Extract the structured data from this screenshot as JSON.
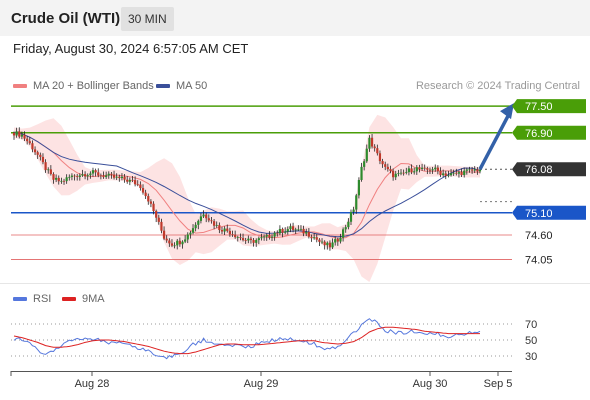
{
  "header": {
    "title": "Crude Oil (WTI)",
    "timeframe": "30 MIN"
  },
  "datetime": "Friday, August 30, 2024 6:57:05 AM CET",
  "copyright": "Research © 2024 Trading Central",
  "colors": {
    "resistance": "#4a9e08",
    "support": "#1a56c8",
    "target_minor": "#e06060",
    "bollinger_fill": "#fddede",
    "ma20": "#f08080",
    "ma50": "#3a4f9a",
    "arrow": "#3361a8",
    "current": "#333333",
    "rsi": "#5577dd",
    "rsi_ma": "#dd2222"
  },
  "chart_data": [
    {
      "type": "candlestick",
      "legend": [
        {
          "name": "MA 20 + Bollinger Bands",
          "color": "#f08080"
        },
        {
          "name": "MA 50",
          "color": "#3a4f9a"
        }
      ],
      "x_ticks": [
        "Aug 28",
        "Aug 29",
        "Aug 30",
        "Sep 5"
      ],
      "ylim": [
        73.7,
        77.75
      ],
      "levels": [
        {
          "value": 77.5,
          "label": "77.50",
          "kind": "resistance"
        },
        {
          "value": 76.9,
          "label": "76.90",
          "kind": "resistance"
        },
        {
          "value": 76.08,
          "label": "76.08",
          "kind": "current"
        },
        {
          "value": 75.1,
          "label": "75.10",
          "kind": "support"
        },
        {
          "value": 74.6,
          "label": "74.60",
          "kind": "minor"
        },
        {
          "value": 74.05,
          "label": "74.05",
          "kind": "minor"
        }
      ],
      "close_path": [
        76.9,
        76.85,
        76.65,
        76.4,
        76.1,
        75.85,
        75.8,
        75.9,
        75.95,
        75.98,
        76.0,
        75.95,
        75.92,
        75.88,
        75.85,
        75.8,
        75.7,
        75.4,
        75.0,
        74.55,
        74.4,
        74.45,
        74.6,
        74.85,
        75.1,
        74.9,
        74.75,
        74.7,
        74.6,
        74.5,
        74.45,
        74.5,
        74.55,
        74.65,
        74.7,
        74.75,
        74.7,
        74.65,
        74.55,
        74.4,
        74.35,
        74.5,
        74.8,
        75.2,
        76.1,
        76.75,
        76.4,
        76.1,
        75.95,
        75.95,
        76.05,
        76.1,
        76.05,
        76.1,
        76.0,
        75.95,
        75.98,
        76.02,
        76.05,
        76.08
      ],
      "projection": {
        "from": 76.08,
        "to": 77.5
      }
    },
    {
      "type": "line",
      "legend": [
        {
          "name": "RSI",
          "color": "#5577dd"
        },
        {
          "name": "9MA",
          "color": "#dd2222"
        }
      ],
      "y_ticks": [
        70,
        50,
        30
      ],
      "ylim": [
        15,
        85
      ],
      "series": [
        {
          "name": "RSI",
          "values": [
            52,
            50,
            45,
            38,
            33,
            38,
            44,
            48,
            50,
            52,
            51,
            49,
            47,
            46,
            44,
            42,
            40,
            36,
            32,
            28,
            30,
            34,
            40,
            46,
            50,
            47,
            44,
            45,
            43,
            41,
            42,
            45,
            48,
            50,
            52,
            52,
            50,
            48,
            45,
            40,
            38,
            43,
            50,
            58,
            68,
            78,
            70,
            62,
            60,
            59,
            60,
            61,
            58,
            60,
            57,
            55,
            57,
            58,
            59,
            60
          ]
        },
        {
          "name": "9MA",
          "values": [
            55,
            53,
            50,
            47,
            43,
            41,
            41,
            42,
            44,
            47,
            49,
            50,
            50,
            49,
            48,
            46,
            44,
            42,
            39,
            36,
            34,
            33,
            33,
            35,
            38,
            41,
            44,
            45,
            45,
            44,
            44,
            44,
            45,
            46,
            47,
            48,
            49,
            49,
            49,
            47,
            46,
            45,
            46,
            48,
            53,
            60,
            64,
            66,
            66,
            65,
            64,
            63,
            61,
            60,
            59,
            58,
            58,
            58,
            58,
            58
          ]
        }
      ]
    }
  ]
}
